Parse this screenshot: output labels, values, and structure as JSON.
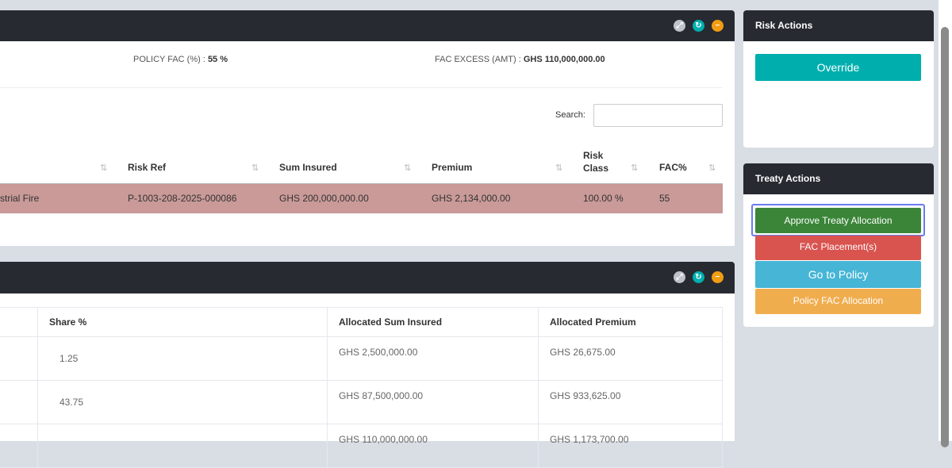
{
  "panel1": {
    "policy_fac_label": "POLICY FAC (%) : ",
    "policy_fac_value": "55 %",
    "fac_excess_label": "FAC EXCESS (AMT) : ",
    "fac_excess_value": "GHS 110,000,000.00",
    "search_label": "Search:",
    "search_value": "",
    "columns": [
      "Risk Ref",
      "Sum Insured",
      "Premium",
      "Risk Class",
      "FAC%"
    ],
    "row": {
      "risk_type": "strial Fire",
      "risk_ref": "P-1003-208-2025-000086",
      "sum_insured": "GHS 200,000,000.00",
      "premium": "GHS 2,134,000.00",
      "risk_class": "100.00 %",
      "fac": "55"
    }
  },
  "panel2": {
    "columns": [
      "",
      "Share %",
      "Allocated Sum Insured",
      "Allocated Premium"
    ],
    "rows": [
      {
        "share": "1.25",
        "sum": "GHS 2,500,000.00",
        "premium": "GHS 26,675.00"
      },
      {
        "share": "43.75",
        "sum": "GHS 87,500,000.00",
        "premium": "GHS 933,625.00"
      },
      {
        "share": "",
        "sum": "GHS 110,000,000.00",
        "premium": "GHS 1,173,700.00"
      }
    ]
  },
  "risk_actions": {
    "title": "Risk Actions",
    "override": "Override"
  },
  "treaty_actions": {
    "title": "Treaty Actions",
    "approve": "Approve Treaty Allocation",
    "fac_placements": "FAC Placement(s)",
    "go_to_policy": "Go to Policy",
    "policy_fac_allocation": "Policy FAC Allocation"
  },
  "colors": {
    "header": "#272a31",
    "highlight_row": "#c99a98",
    "override": "#00aeae",
    "approve": "#3a8538",
    "fac": "#d9534f",
    "goto": "#46b5d6",
    "policy_fac": "#f0ad4e"
  }
}
